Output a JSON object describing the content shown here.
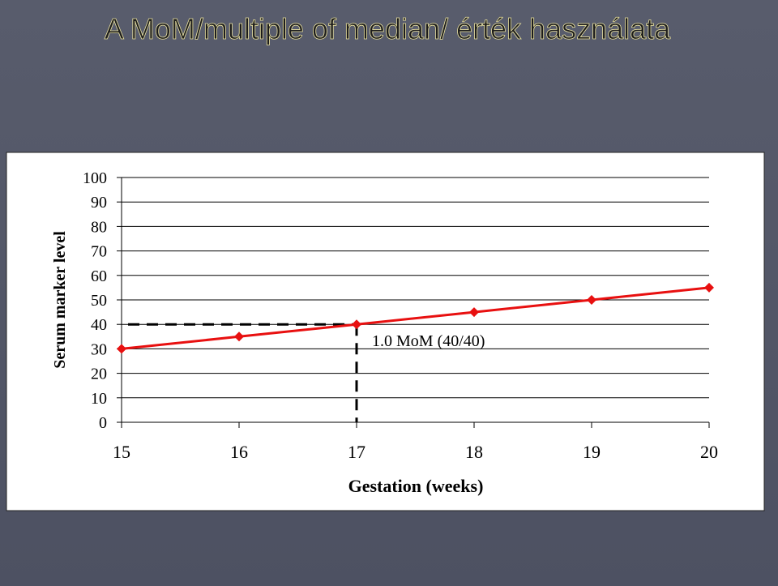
{
  "chart_data": {
    "type": "line",
    "title": "A MoM/multiple of median/ érték használata",
    "x_label": "Gestation (weeks)",
    "y_label": "Serum marker level",
    "annotation": "1.0 MoM (40/40)",
    "x": [
      15,
      16,
      17,
      18,
      19,
      20
    ],
    "series": [
      {
        "name": "Serum marker level",
        "color": "#e81010",
        "values": [
          30,
          35,
          40,
          45,
          50,
          55
        ]
      }
    ],
    "reference_x": 17,
    "reference_y": 40,
    "xlim": [
      15,
      20
    ],
    "xticks": [
      15,
      16,
      17,
      18,
      19,
      20
    ],
    "ylim": [
      0,
      100
    ],
    "yticks": [
      0,
      10,
      20,
      30,
      40,
      50,
      60,
      70,
      80,
      90,
      100
    ],
    "grid": true
  }
}
